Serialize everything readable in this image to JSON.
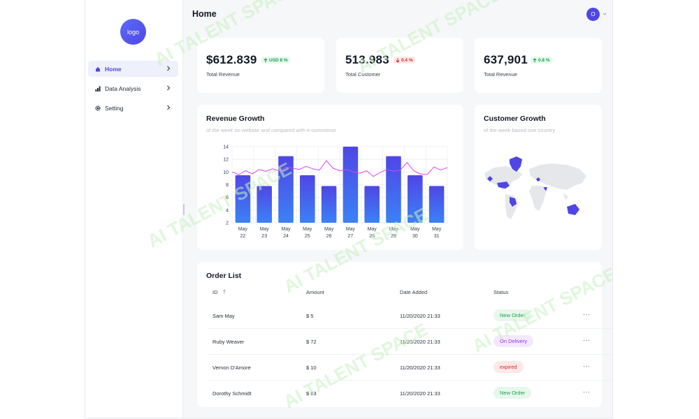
{
  "sidebar": {
    "logo_text": "logo",
    "items": [
      {
        "label": "Home",
        "icon": "home-icon",
        "active": true
      },
      {
        "label": "Data Analysis",
        "icon": "bar-chart-icon",
        "active": false
      },
      {
        "label": "Setting",
        "icon": "gear-icon",
        "active": false
      }
    ]
  },
  "header": {
    "title": "Home",
    "avatar_initial": "O"
  },
  "stats": [
    {
      "value": "$612.839",
      "badge": "USD 8 %",
      "direction": "up",
      "label": "Total Revenue"
    },
    {
      "value": "513.983",
      "badge": "0.4 %",
      "direction": "down",
      "label": "Total Customer"
    },
    {
      "value": "637,901",
      "badge": "0.8 %",
      "direction": "up",
      "label": "Total Revenue"
    }
  ],
  "revenue": {
    "title": "Revenue Growth",
    "subtitle": "of the week on website and compared with e-commerce"
  },
  "customer": {
    "title": "Customer Growth",
    "subtitle": "of the week based one country"
  },
  "chart_data": {
    "type": "bar",
    "categories": [
      "May 22",
      "May 23",
      "May 24",
      "May 25",
      "May 26",
      "May 27",
      "May 28",
      "May 29",
      "May 30",
      "May 31"
    ],
    "values": [
      9.5,
      7.8,
      12.5,
      9.5,
      7.8,
      14,
      7.8,
      12.5,
      9.5,
      7.8
    ],
    "line_values": [
      10,
      9.6,
      10.2,
      9.7,
      10.4,
      10.1,
      10.5,
      10.2,
      10.8,
      10.6,
      10.4,
      10.9,
      10.5,
      10.3,
      11.8,
      10.6,
      10.2,
      10.4,
      10,
      9.8,
      10.2,
      9.3,
      9.9,
      10.4,
      10.1,
      10.3,
      11.5,
      10.2,
      9.7,
      9.6,
      10.8,
      10.3,
      10.7
    ],
    "ylim": [
      2,
      14
    ],
    "yticks": [
      "2",
      "4",
      "6",
      "8",
      "10",
      "12",
      "14"
    ],
    "grid": true,
    "colors": {
      "bar_top": "#4f46e5",
      "bar_bottom": "#3b82f6",
      "line": "#d946ef"
    }
  },
  "map": {
    "highlight_color": "#4f46e5",
    "base_color": "#e5e7eb"
  },
  "orders": {
    "title": "Order List",
    "columns": [
      "ID",
      "Amount",
      "Date Added",
      "Status"
    ],
    "rows": [
      {
        "name": "Sam May",
        "amount": "$ 5",
        "date": "11/20/2020 21:33",
        "status": "New Order",
        "status_kind": "new"
      },
      {
        "name": "Ruby Weaver",
        "amount": "$ 72",
        "date": "11/20/2020 21:33",
        "status": "On Delivery",
        "status_kind": "delivery"
      },
      {
        "name": "Vernon D'Amore",
        "amount": "$ 10",
        "date": "11/20/2020 21:33",
        "status": "expired",
        "status_kind": "expired"
      },
      {
        "name": "Dorothy Schmidt",
        "amount": "$ 63",
        "date": "11/20/2020 21:33",
        "status": "New Order",
        "status_kind": "new"
      }
    ],
    "more_label": "···"
  },
  "watermark_text": "AI TALENT SPACE"
}
